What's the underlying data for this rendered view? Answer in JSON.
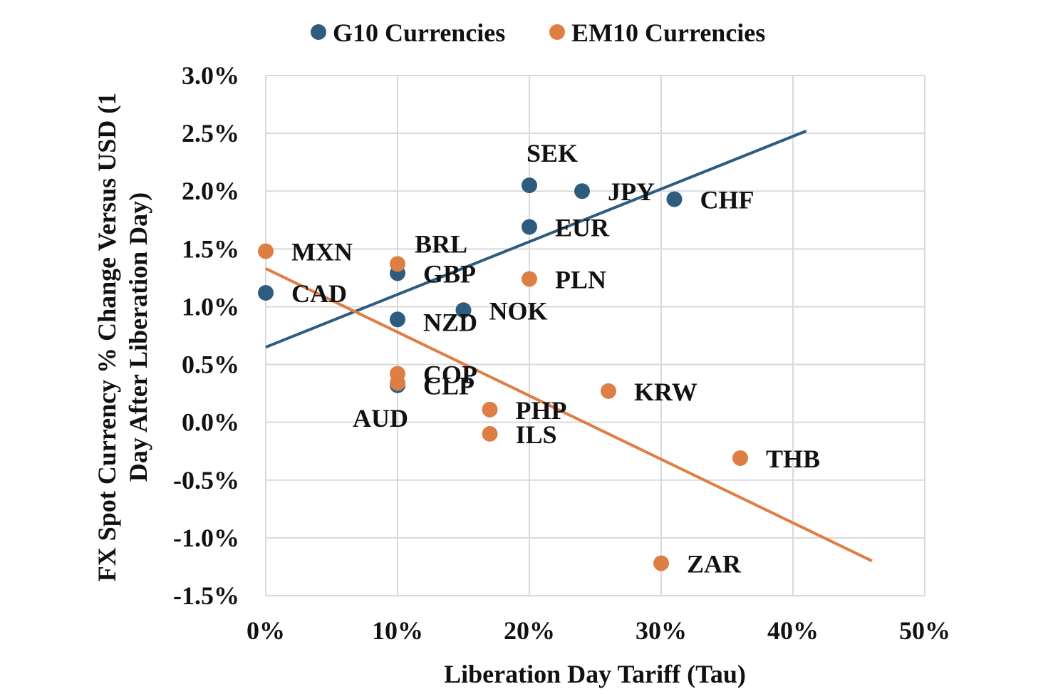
{
  "chart_data": {
    "type": "scatter",
    "xlabel": "Liberation Day Tariff (Tau)",
    "ylabel_lines": [
      "FX Spot Currency % Change Versus USD (1",
      "Day After Liberation Day)"
    ],
    "xlim": [
      0,
      0.5
    ],
    "ylim": [
      -0.015,
      0.03
    ],
    "x_ticks": [
      0,
      0.1,
      0.2,
      0.3,
      0.4,
      0.5
    ],
    "x_tick_labels": [
      "0%",
      "10%",
      "20%",
      "30%",
      "40%",
      "50%"
    ],
    "y_ticks": [
      0.03,
      0.025,
      0.02,
      0.015,
      0.01,
      0.005,
      0,
      -0.005,
      -0.01,
      -0.015
    ],
    "y_tick_labels": [
      "3.0%",
      "2.5%",
      "2.0%",
      "1.5%",
      "1.0%",
      "0.5%",
      "0.0%",
      "-0.5%",
      "-1.0%",
      "-1.5%"
    ],
    "grid": true,
    "legend_position": "top",
    "series": [
      {
        "name": "G10 Currencies",
        "color": "#2e5c7e",
        "points": [
          {
            "label": "SEK",
            "x": 0.2,
            "y": 0.0205,
            "label_pos": "above"
          },
          {
            "label": "JPY",
            "x": 0.24,
            "y": 0.02,
            "label_pos": "right"
          },
          {
            "label": "CHF",
            "x": 0.31,
            "y": 0.0193,
            "label_pos": "right"
          },
          {
            "label": "EUR",
            "x": 0.2,
            "y": 0.0169,
            "label_pos": "right"
          },
          {
            "label": "GBP",
            "x": 0.1,
            "y": 0.0129,
            "label_pos": "right"
          },
          {
            "label": "CAD",
            "x": 0.0,
            "y": 0.0112,
            "label_pos": "right"
          },
          {
            "label": "NZD",
            "x": 0.1,
            "y": 0.0089,
            "label_pos": "right-below"
          },
          {
            "label": "NOK",
            "x": 0.15,
            "y": 0.0097,
            "label_pos": "right"
          },
          {
            "label": "AUD",
            "x": 0.1,
            "y": 0.0032,
            "label_pos": "below-left"
          }
        ],
        "trendline": {
          "x": [
            0,
            0.41
          ],
          "y": [
            0.0065,
            0.0252
          ]
        }
      },
      {
        "name": "EM10 Currencies",
        "color": "#dd7f45",
        "points": [
          {
            "label": "MXN",
            "x": 0.0,
            "y": 0.0148,
            "label_pos": "right"
          },
          {
            "label": "BRL",
            "x": 0.1,
            "y": 0.0137,
            "label_pos": "above-right"
          },
          {
            "label": "PLN",
            "x": 0.2,
            "y": 0.0124,
            "label_pos": "right"
          },
          {
            "label": "COP",
            "x": 0.1,
            "y": 0.0042,
            "label_pos": "right"
          },
          {
            "label": "CLP",
            "x": 0.1,
            "y": 0.0034,
            "label_pos": "right-below"
          },
          {
            "label": "KRW",
            "x": 0.26,
            "y": 0.0027,
            "label_pos": "right"
          },
          {
            "label": "PHP",
            "x": 0.17,
            "y": 0.0011,
            "label_pos": "right"
          },
          {
            "label": "ILS",
            "x": 0.17,
            "y": -0.001,
            "label_pos": "right"
          },
          {
            "label": "THB",
            "x": 0.36,
            "y": -0.0031,
            "label_pos": "right"
          },
          {
            "label": "ZAR",
            "x": 0.3,
            "y": -0.0122,
            "label_pos": "right"
          }
        ],
        "trendline": {
          "x": [
            0,
            0.46
          ],
          "y": [
            0.0133,
            -0.012
          ]
        }
      }
    ]
  }
}
